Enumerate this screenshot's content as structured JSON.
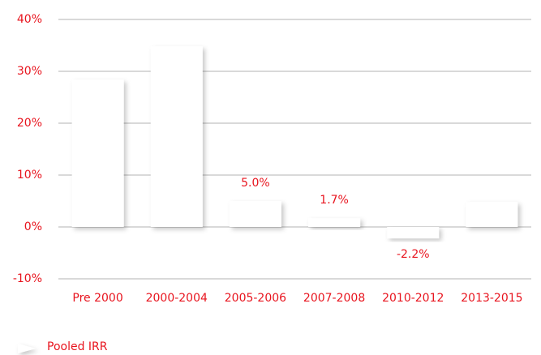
{
  "chart_data": {
    "type": "bar",
    "categories": [
      "Pre 2000",
      "2000-2004",
      "2005-2006",
      "2007-2008",
      "2010-2012",
      "2013-2015"
    ],
    "series": [
      {
        "name": "Pooled IRR",
        "color": "#ffffff",
        "values": [
          28.4,
          34.8,
          5.0,
          1.7,
          -2.2,
          4.8
        ],
        "value_labels": [
          null,
          null,
          "5.0%",
          "1.7%",
          "-2.2%",
          null
        ]
      }
    ],
    "ylim": [
      -10,
      40
    ],
    "yticks": [
      {
        "value": -10,
        "label": "-10%"
      },
      {
        "value": 0,
        "label": "0%"
      },
      {
        "value": 10,
        "label": "10%"
      },
      {
        "value": 20,
        "label": "20%"
      },
      {
        "value": 30,
        "label": "30%"
      },
      {
        "value": 40,
        "label": "40%"
      }
    ],
    "grid": true,
    "legend": "bottom-left"
  }
}
